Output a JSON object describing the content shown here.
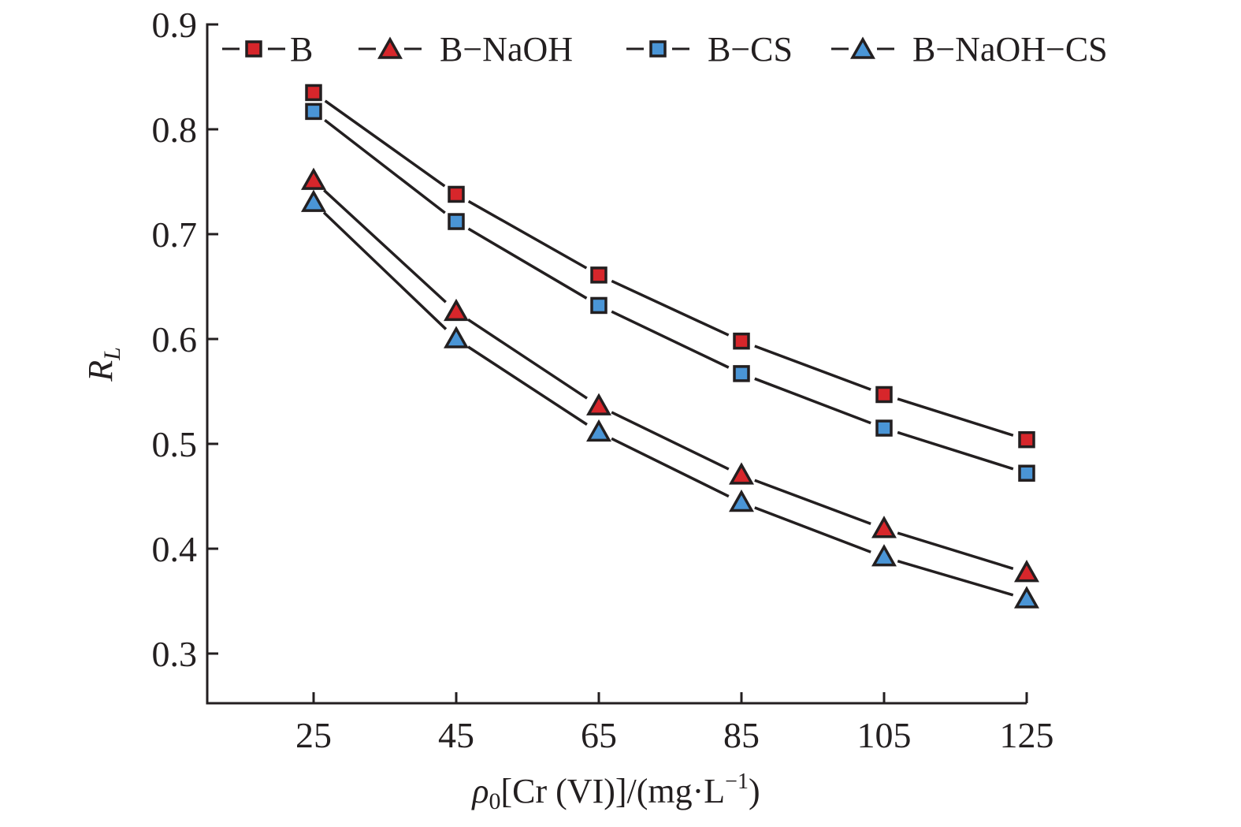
{
  "chart_data": {
    "type": "line",
    "title": "",
    "xlabel": "ρ0[Cr (VI)]/(mg·L−1)",
    "xlabel_parts": {
      "rho": "ρ",
      "sub": "0",
      "main": "[Cr (VI)]/(mg·L",
      "sup": "−1",
      "close": ")"
    },
    "ylabel": "RL",
    "ylabel_parts": {
      "main": "R",
      "sub": "L"
    },
    "x": [
      25,
      45,
      65,
      85,
      105,
      125
    ],
    "x_tick_labels": [
      "25",
      "45",
      "65",
      "85",
      "105",
      "125"
    ],
    "y_ticks": [
      0.3,
      0.4,
      0.5,
      0.6,
      0.7,
      0.8,
      0.9
    ],
    "y_tick_labels": [
      "0.3",
      "0.4",
      "0.5",
      "0.6",
      "0.7",
      "0.8",
      "0.9"
    ],
    "xlim": [
      10,
      128
    ],
    "ylim": [
      0.25,
      0.9
    ],
    "grid": false,
    "legend_position": "top",
    "series": [
      {
        "name": "B",
        "marker": "square",
        "color": "#d7262b",
        "values": [
          0.835,
          0.738,
          0.661,
          0.598,
          0.547,
          0.504
        ]
      },
      {
        "name": "B−NaOH",
        "marker": "triangle",
        "color": "#d7262b",
        "values": [
          0.751,
          0.626,
          0.536,
          0.47,
          0.419,
          0.377
        ]
      },
      {
        "name": "B−CS",
        "marker": "square",
        "color": "#4a95d6",
        "values": [
          0.817,
          0.712,
          0.632,
          0.567,
          0.515,
          0.472
        ]
      },
      {
        "name": "B−NaOH−CS",
        "marker": "triangle",
        "color": "#4a95d6",
        "values": [
          0.73,
          0.6,
          0.511,
          0.444,
          0.392,
          0.352
        ]
      }
    ]
  },
  "colors": {
    "ink": "#231f20",
    "background": "#ffffff"
  }
}
